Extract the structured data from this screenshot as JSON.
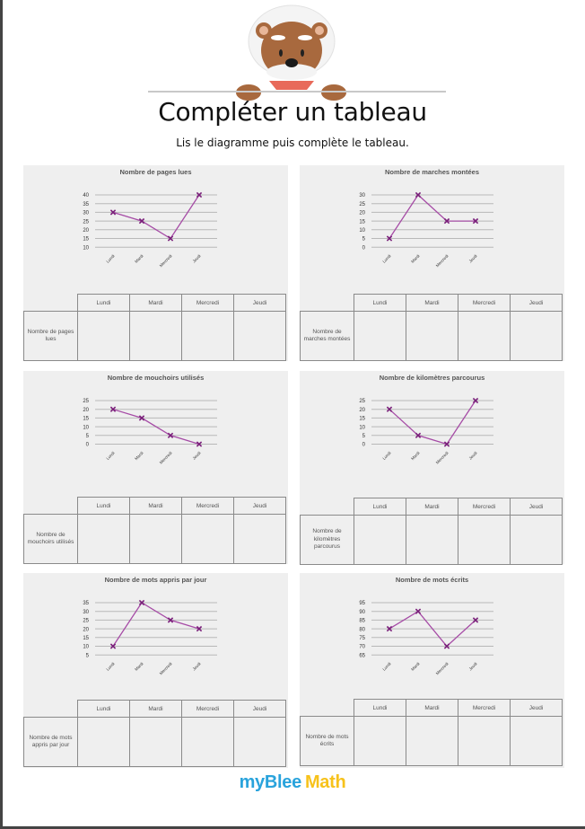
{
  "header": {
    "title": "Compléter un tableau",
    "subtitle": "Lis le diagramme puis complète le tableau.",
    "mascot_icon": "bear-mascot-icon"
  },
  "footer": {
    "logo_part1": "myBlee",
    "logo_part2": "Math",
    "logo_color1": "#29a3dc",
    "logo_color2": "#f7c21b"
  },
  "colors": {
    "line": "#a64ca6",
    "marker": "#7a1f7a",
    "panel_bg": "#efefef",
    "grid": "#b8b8b8"
  },
  "table_headers": [
    "Lundi",
    "Mardi",
    "Mercredi",
    "Jeudi"
  ],
  "exercises": [
    {
      "title": "Nombre de pages lues",
      "row_label": "Nombre de pages lues"
    },
    {
      "title": "Nombre de marches montées",
      "row_label": "Nombre de marches montées"
    },
    {
      "title": "Nombre de mouchoirs utilisés",
      "row_label": "Nombre de mouchoirs utilisés"
    },
    {
      "title": "Nombre de kilomètres parcourus",
      "row_label": "Nombre de kilomètres parcourus"
    },
    {
      "title": "Nombre de mots appris par jour",
      "row_label": "Nombre de mots appris par jour"
    },
    {
      "title": "Nombre de mots écrits",
      "row_label": "Nombre de mots écrits"
    }
  ],
  "chart_data": [
    {
      "type": "line",
      "title": "Nombre de pages lues",
      "categories": [
        "Lundi",
        "Mardi",
        "Mercredi",
        "Jeudi"
      ],
      "values": [
        30,
        25,
        15,
        40
      ],
      "yticks": [
        10,
        15,
        20,
        25,
        30,
        35,
        40
      ],
      "ylim": [
        10,
        40
      ],
      "xlabel": "",
      "ylabel": "",
      "grid": true,
      "marker": "x"
    },
    {
      "type": "line",
      "title": "Nombre de marches montées",
      "categories": [
        "Lundi",
        "Mardi",
        "Mercredi",
        "Jeudi"
      ],
      "values": [
        5,
        30,
        15,
        15
      ],
      "yticks": [
        0,
        5,
        10,
        15,
        20,
        25,
        30
      ],
      "ylim": [
        0,
        30
      ],
      "xlabel": "",
      "ylabel": "",
      "grid": true,
      "marker": "x"
    },
    {
      "type": "line",
      "title": "Nombre de mouchoirs utilisés",
      "categories": [
        "Lundi",
        "Mardi",
        "Mercredi",
        "Jeudi"
      ],
      "values": [
        20,
        15,
        5,
        0
      ],
      "yticks": [
        0,
        5,
        10,
        15,
        20,
        25
      ],
      "ylim": [
        0,
        25
      ],
      "xlabel": "",
      "ylabel": "",
      "grid": true,
      "marker": "x"
    },
    {
      "type": "line",
      "title": "Nombre de kilomètres parcourus",
      "categories": [
        "Lundi",
        "Mardi",
        "Mercredi",
        "Jeudi"
      ],
      "values": [
        20,
        5,
        0,
        25
      ],
      "yticks": [
        0,
        5,
        10,
        15,
        20,
        25
      ],
      "ylim": [
        0,
        25
      ],
      "xlabel": "",
      "ylabel": "",
      "grid": true,
      "marker": "x"
    },
    {
      "type": "line",
      "title": "Nombre de mots appris par jour",
      "categories": [
        "Lundi",
        "Mardi",
        "Mercredi",
        "Jeudi"
      ],
      "values": [
        10,
        35,
        25,
        20
      ],
      "yticks": [
        5,
        10,
        15,
        20,
        25,
        30,
        35
      ],
      "ylim": [
        5,
        35
      ],
      "xlabel": "",
      "ylabel": "",
      "grid": true,
      "marker": "x"
    },
    {
      "type": "line",
      "title": "Nombre de mots écrits",
      "categories": [
        "Lundi",
        "Mardi",
        "Mercredi",
        "Jeudi"
      ],
      "values": [
        80,
        90,
        70,
        85
      ],
      "yticks": [
        65,
        70,
        75,
        80,
        85,
        90,
        95
      ],
      "ylim": [
        65,
        95
      ],
      "xlabel": "",
      "ylabel": "",
      "grid": true,
      "marker": "x"
    }
  ]
}
